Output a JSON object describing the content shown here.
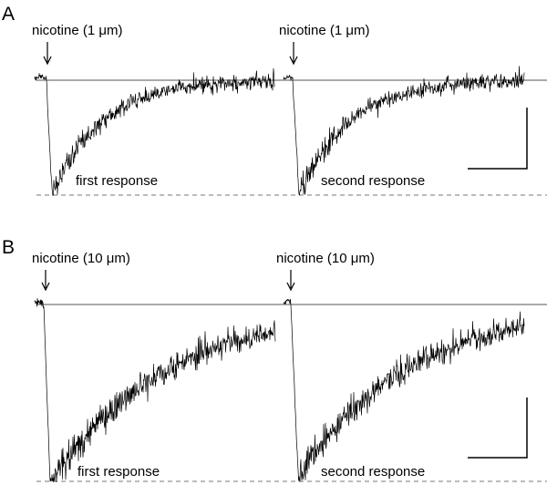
{
  "colors": {
    "trace": "#000000",
    "baseline": "#555555",
    "peak_line": "#777777",
    "text": "#000000"
  },
  "chart_data": [
    {
      "type": "line",
      "panel_label": "A",
      "title": "",
      "xlabel": "",
      "ylabel": "",
      "baseline_current": 0,
      "ylim": [
        -1.0,
        0.08
      ],
      "grid": false,
      "legend": "none",
      "traces": [
        {
          "stimulus_label": "nicotine (1 μm)",
          "response_label": "first response",
          "peak": -1.0,
          "recovery_fraction_end": 0.99
        },
        {
          "stimulus_label": "nicotine (1 μm)",
          "response_label": "second response",
          "peak": -1.0,
          "recovery_fraction_end": 0.99
        }
      ]
    },
    {
      "type": "line",
      "panel_label": "B",
      "title": "",
      "xlabel": "",
      "ylabel": "",
      "baseline_current": 0,
      "ylim": [
        -1.0,
        0.05
      ],
      "grid": false,
      "legend": "none",
      "traces": [
        {
          "stimulus_label": "nicotine (10 μm)",
          "response_label": "first response",
          "peak": -1.0,
          "recovery_fraction_end": 0.85
        },
        {
          "stimulus_label": "nicotine (10 μm)",
          "response_label": "second response",
          "peak": -0.97,
          "recovery_fraction_end": 0.87
        }
      ]
    }
  ]
}
